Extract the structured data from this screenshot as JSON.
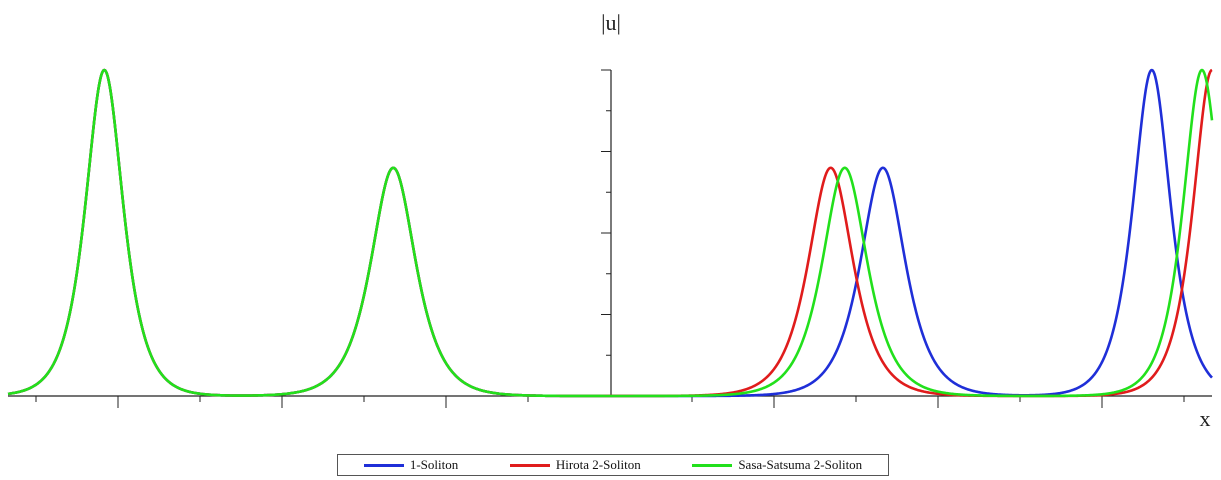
{
  "chart_data": {
    "type": "line",
    "ylabel": "|u|",
    "xlabel": "x",
    "xlim": [
      -15,
      15
    ],
    "ylim": [
      0,
      1
    ],
    "grid": false,
    "legend_position": "bottom",
    "series": [
      {
        "name": "1-Soliton",
        "color": "#1f2fd8",
        "peaks": [
          {
            "x": -12.6,
            "height": 1.0,
            "width": 0.42
          },
          {
            "x": -5.4,
            "height": 0.7,
            "width": 0.5
          },
          {
            "x": 13.5,
            "height": 1.0,
            "width": 0.42
          },
          {
            "x": 6.8,
            "height": 0.7,
            "width": 0.5
          }
        ]
      },
      {
        "name": "Hirota 2-Soliton",
        "color": "#e01c1c",
        "peaks": [
          {
            "x": -12.6,
            "height": 1.0,
            "width": 0.42
          },
          {
            "x": -5.4,
            "height": 0.7,
            "width": 0.5
          },
          {
            "x": 5.5,
            "height": 0.7,
            "width": 0.5
          },
          {
            "x": 15.0,
            "height": 1.0,
            "width": 0.42
          }
        ]
      },
      {
        "name": "Sasa-Satsuma 2-Soliton",
        "color": "#22e01c",
        "peaks": [
          {
            "x": -12.6,
            "height": 1.0,
            "width": 0.42
          },
          {
            "x": -5.4,
            "height": 0.7,
            "width": 0.5
          },
          {
            "x": 5.85,
            "height": 0.7,
            "width": 0.5
          },
          {
            "x": 14.75,
            "height": 1.0,
            "width": 0.42
          }
        ]
      }
    ]
  }
}
